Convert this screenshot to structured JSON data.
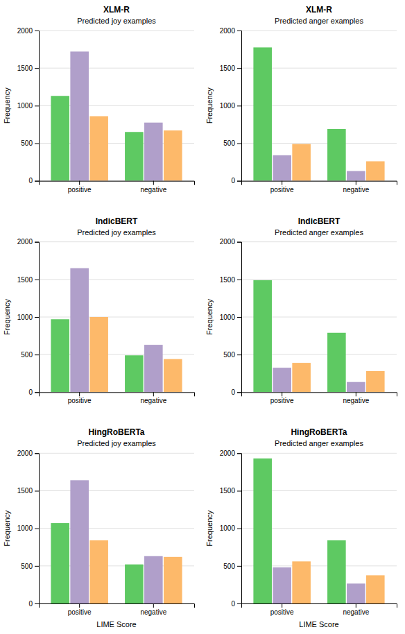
{
  "chart_data": [
    {
      "type": "bar",
      "title": "XLM-R",
      "subtitle": "Predicted joy examples",
      "categories": [
        "positive",
        "negative"
      ],
      "series": [
        {
          "color": "#5ec962",
          "values": [
            1130,
            650
          ]
        },
        {
          "color": "#b09fca",
          "values": [
            1720,
            775
          ]
        },
        {
          "color": "#fdb96a",
          "values": [
            860,
            670
          ]
        }
      ],
      "y_label": "Frequency",
      "ylim": [
        0,
        2000
      ],
      "yticks": [
        0,
        500,
        1000,
        1500,
        2000
      ],
      "grid": true
    },
    {
      "type": "bar",
      "title": "XLM-R",
      "subtitle": "Predicted anger examples",
      "categories": [
        "positive",
        "negative"
      ],
      "series": [
        {
          "color": "#5ec962",
          "values": [
            1775,
            690
          ]
        },
        {
          "color": "#b09fca",
          "values": [
            340,
            130
          ]
        },
        {
          "color": "#fdb96a",
          "values": [
            490,
            260
          ]
        }
      ],
      "y_label": "Frequency",
      "ylim": [
        0,
        2000
      ],
      "yticks": [
        0,
        500,
        1000,
        1500,
        2000
      ],
      "grid": true
    },
    {
      "type": "bar",
      "title": "IndicBERT",
      "subtitle": "Predicted joy examples",
      "categories": [
        "positive",
        "negative"
      ],
      "series": [
        {
          "color": "#5ec962",
          "values": [
            970,
            490
          ]
        },
        {
          "color": "#b09fca",
          "values": [
            1650,
            630
          ]
        },
        {
          "color": "#fdb96a",
          "values": [
            1000,
            440
          ]
        }
      ],
      "y_label": "Frequency",
      "ylim": [
        0,
        2000
      ],
      "yticks": [
        0,
        500,
        1000,
        1500,
        2000
      ],
      "grid": true
    },
    {
      "type": "bar",
      "title": "IndicBERT",
      "subtitle": "Predicted anger examples",
      "categories": [
        "positive",
        "negative"
      ],
      "series": [
        {
          "color": "#5ec962",
          "values": [
            1490,
            790
          ]
        },
        {
          "color": "#b09fca",
          "values": [
            325,
            135
          ]
        },
        {
          "color": "#fdb96a",
          "values": [
            390,
            280
          ]
        }
      ],
      "y_label": "Frequency",
      "ylim": [
        0,
        2000
      ],
      "yticks": [
        0,
        500,
        1000,
        1500,
        2000
      ],
      "grid": true
    },
    {
      "type": "bar",
      "title": "HingRoBERTa",
      "subtitle": "Predicted joy examples",
      "categories": [
        "positive",
        "negative"
      ],
      "series": [
        {
          "color": "#5ec962",
          "values": [
            1070,
            520
          ]
        },
        {
          "color": "#b09fca",
          "values": [
            1640,
            630
          ]
        },
        {
          "color": "#fdb96a",
          "values": [
            840,
            620
          ]
        }
      ],
      "x_label": "LIME Score",
      "y_label": "Frequency",
      "ylim": [
        0,
        2000
      ],
      "yticks": [
        0,
        500,
        1000,
        1500,
        2000
      ],
      "grid": true
    },
    {
      "type": "bar",
      "title": "HingRoBERTa",
      "subtitle": "Predicted anger examples",
      "categories": [
        "positive",
        "negative"
      ],
      "series": [
        {
          "color": "#5ec962",
          "values": [
            1930,
            840
          ]
        },
        {
          "color": "#b09fca",
          "values": [
            480,
            265
          ]
        },
        {
          "color": "#fdb96a",
          "values": [
            560,
            375
          ]
        }
      ],
      "x_label": "LIME Score",
      "y_label": "Frequency",
      "ylim": [
        0,
        2000
      ],
      "yticks": [
        0,
        500,
        1000,
        1500,
        2000
      ],
      "grid": true
    }
  ]
}
